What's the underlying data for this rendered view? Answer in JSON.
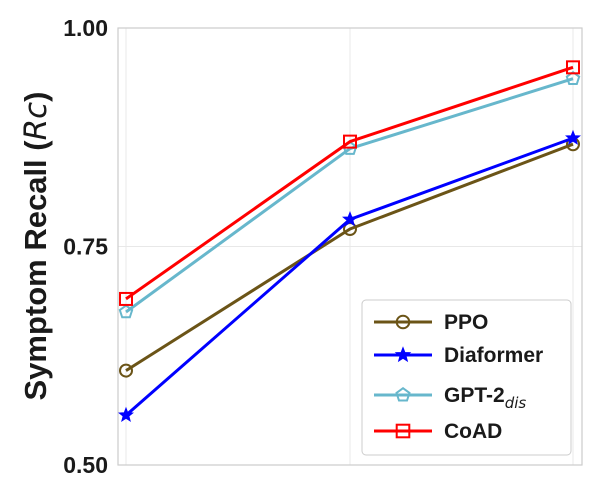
{
  "chart_data": {
    "type": "line",
    "title": "",
    "xlabel": "",
    "ylabel": {
      "main": "Symptom Recall (",
      "symbol": "Rc",
      "close": ")"
    },
    "x": [
      1,
      2,
      3
    ],
    "ylim": [
      0.5,
      1.0
    ],
    "yticks": [
      "0.50",
      "0.75",
      "1.00"
    ],
    "grid": true,
    "legend_position": "lower-right",
    "series": [
      {
        "name": "PPO",
        "name_sub": "",
        "color": "#6b5417",
        "marker": "circle",
        "values": [
          0.608,
          0.77,
          0.867
        ]
      },
      {
        "name": "Diaformer",
        "name_sub": "",
        "color": "#0000ff",
        "marker": "star",
        "values": [
          0.557,
          0.781,
          0.874
        ]
      },
      {
        "name": "GPT-2",
        "name_sub": "dis",
        "color": "#67b7cc",
        "marker": "pentagon",
        "values": [
          0.675,
          0.862,
          0.942
        ]
      },
      {
        "name": "CoAD",
        "name_sub": "",
        "color": "#ff0000",
        "marker": "square",
        "values": [
          0.69,
          0.87,
          0.955
        ]
      }
    ]
  }
}
